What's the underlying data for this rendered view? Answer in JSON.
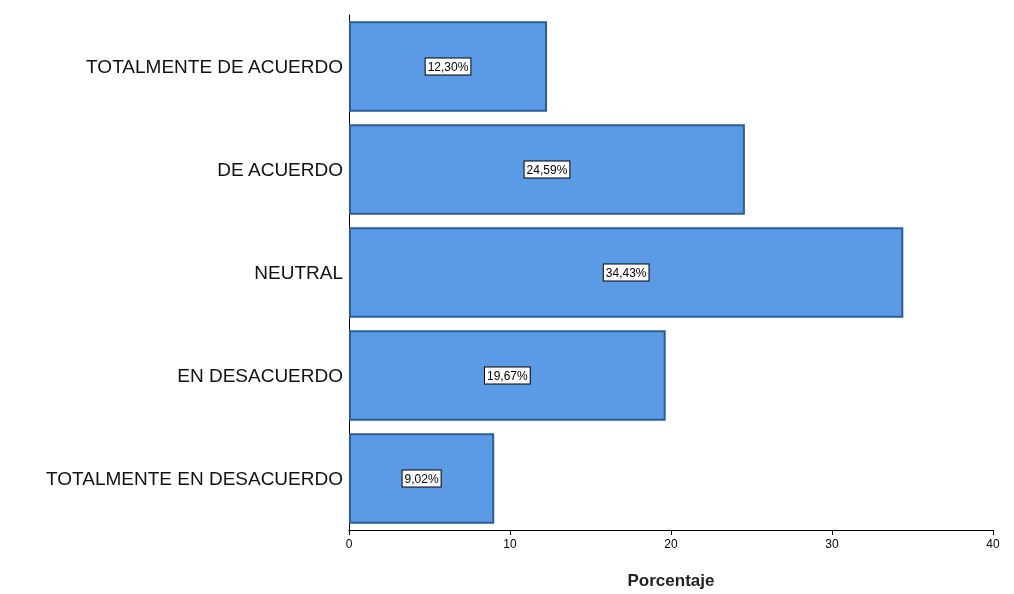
{
  "chart_data": {
    "type": "bar",
    "orientation": "horizontal",
    "xlabel": "Porcentaje",
    "categories": [
      "TOTALMENTE DE ACUERDO",
      "DE ACUERDO",
      "NEUTRAL",
      "EN DESACUERDO",
      "TOTALMENTE EN DESACUERDO"
    ],
    "values": [
      12.3,
      24.59,
      34.43,
      19.67,
      9.02
    ],
    "value_labels": [
      "12,30%",
      "24,59%",
      "34,43%",
      "19,67%",
      "9,02%"
    ],
    "color": "#5b9be6",
    "xlim": [
      0,
      40
    ],
    "xticks": [
      0,
      10,
      20,
      30,
      40
    ],
    "grid": false
  }
}
